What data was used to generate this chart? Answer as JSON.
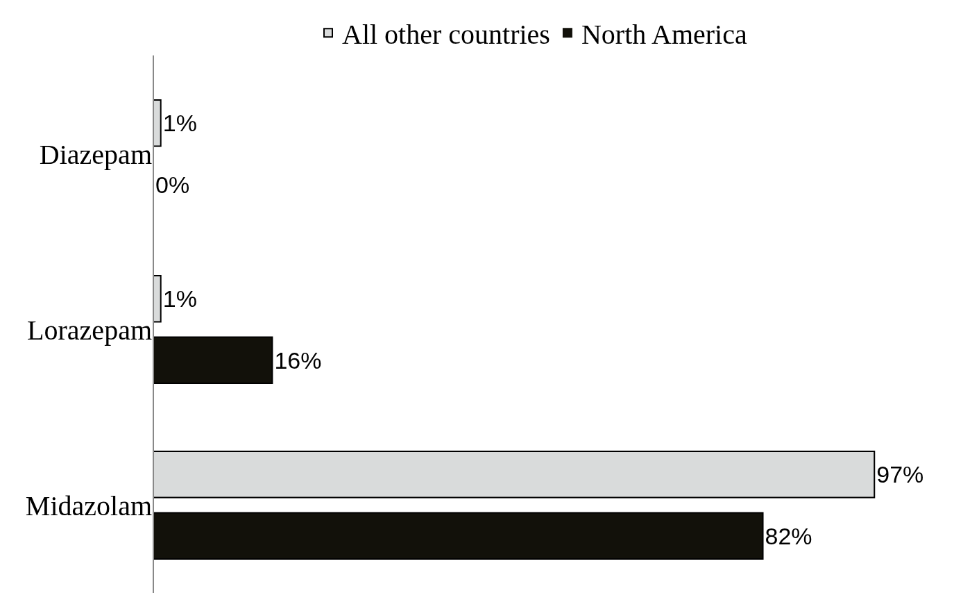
{
  "chart_data": {
    "type": "bar",
    "orientation": "horizontal",
    "categories": [
      "Diazepam",
      "Lorazepam",
      "Midazolam"
    ],
    "series": [
      {
        "name": "All other countries",
        "color": "#d9dbdb",
        "values": [
          1,
          1,
          97
        ],
        "value_labels": [
          "1%",
          "1%",
          "97%"
        ]
      },
      {
        "name": "North America",
        "color": "#12110a",
        "values": [
          0,
          16,
          82
        ],
        "value_labels": [
          "0%",
          "16%",
          "82%"
        ]
      }
    ],
    "legend": "top",
    "grid": false
  }
}
